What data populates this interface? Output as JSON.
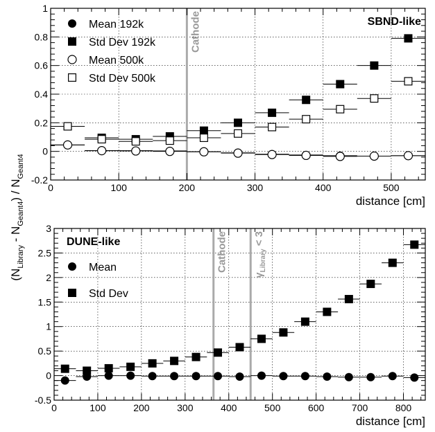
{
  "ylabel_parts": {
    "open": "(N",
    "sub1": "Library",
    "mid": " - N",
    "sub2": "Geant4",
    "close": ") / N",
    "sub3": "Geant4"
  },
  "chart_data": [
    {
      "type": "scatter",
      "panel_label": "SBND-like",
      "xlabel": "distance [cm]",
      "xlim": [
        0,
        550
      ],
      "ylim": [
        -0.2,
        1.0
      ],
      "xticks": [
        0,
        100,
        200,
        300,
        400,
        500
      ],
      "yticks": [
        -0.2,
        0,
        0.2,
        0.4,
        0.6,
        0.8,
        1
      ],
      "ytick_labels": [
        "-0.2",
        "0",
        "0.2",
        "0.4",
        "0.6",
        "0.8",
        "1"
      ],
      "xerr": 25,
      "grid": true,
      "legend_position": "top-left",
      "vlines": [
        {
          "x": 200,
          "label": "Cathode",
          "color": "#aaaaaa"
        }
      ],
      "x": [
        25,
        75,
        125,
        175,
        225,
        275,
        325,
        375,
        425,
        475,
        525
      ],
      "series": [
        {
          "name": "Mean 192k",
          "marker": "circle-filled",
          "values": [
            0.045,
            0.005,
            0.005,
            0.003,
            -0.002,
            -0.01,
            -0.02,
            -0.025,
            -0.03,
            -0.033,
            -0.03
          ]
        },
        {
          "name": "Std Dev 192k",
          "marker": "square-filled",
          "values": [
            0.175,
            0.095,
            0.085,
            0.105,
            0.145,
            0.2,
            0.27,
            0.36,
            0.47,
            0.6,
            0.79
          ]
        },
        {
          "name": "Mean 500k",
          "marker": "circle-open",
          "values": [
            0.045,
            0.005,
            0.003,
            0.0,
            -0.003,
            -0.012,
            -0.022,
            -0.028,
            -0.035,
            -0.033,
            -0.03
          ]
        },
        {
          "name": "Std Dev 500k",
          "marker": "square-open",
          "values": [
            0.175,
            0.085,
            0.07,
            0.075,
            0.095,
            0.125,
            0.17,
            0.225,
            0.295,
            0.37,
            0.49
          ]
        }
      ]
    },
    {
      "type": "scatter",
      "panel_label": "DUNE-like",
      "xlabel": "distance [cm]",
      "xlim": [
        0,
        850
      ],
      "ylim": [
        -0.5,
        3.0
      ],
      "xticks": [
        0,
        100,
        200,
        300,
        400,
        500,
        600,
        700,
        800
      ],
      "yticks": [
        -0.5,
        0,
        0.5,
        1,
        1.5,
        2,
        2.5,
        3
      ],
      "ytick_labels": [
        "-0.5",
        "0",
        "0.5",
        "1",
        "1.5",
        "2",
        "2.5",
        "3"
      ],
      "xerr": 25,
      "grid": true,
      "legend_position": "top-left",
      "vlines": [
        {
          "x": 365,
          "label": "Cathode",
          "color": "#aaaaaa"
        },
        {
          "x": 450,
          "label_parts": [
            "γ",
            "Library",
            " < 3"
          ],
          "color": "#aaaaaa"
        }
      ],
      "x": [
        25,
        75,
        125,
        175,
        225,
        275,
        325,
        375,
        425,
        475,
        525,
        575,
        625,
        675,
        725,
        775,
        825
      ],
      "series": [
        {
          "name": "Mean",
          "marker": "circle-filled",
          "values": [
            -0.1,
            -0.02,
            0.0,
            0.0,
            -0.01,
            -0.01,
            -0.01,
            -0.01,
            -0.02,
            0.0,
            -0.01,
            -0.01,
            -0.02,
            -0.03,
            -0.03,
            -0.01,
            -0.04
          ]
        },
        {
          "name": "Std Dev",
          "marker": "square-filled",
          "values": [
            0.14,
            0.1,
            0.15,
            0.18,
            0.25,
            0.3,
            0.38,
            0.47,
            0.58,
            0.75,
            0.88,
            1.1,
            1.3,
            1.56,
            1.87,
            2.3,
            2.67
          ]
        }
      ]
    }
  ]
}
